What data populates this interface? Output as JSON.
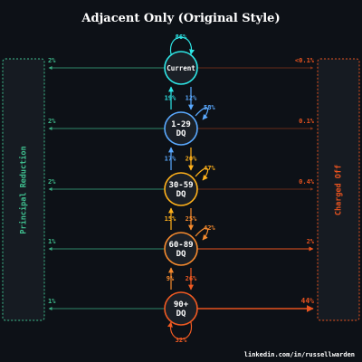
{
  "title": "Adjacent Only (Original Style)",
  "credit": "linkedin.com/in/russellwarden",
  "side_labels": {
    "left": "Principal Reduction",
    "right": "Charged Off"
  },
  "colors": {
    "background": "#0d1117",
    "title": "#ffffff",
    "credit": "#ffffff",
    "principal": "#3fbf8f",
    "charged_off": "#e8531f",
    "panel_fill": "#161b22",
    "node_fill": "#1b2027",
    "node_text": "#ffffff"
  },
  "states": [
    {
      "id": "current",
      "label": [
        "Current"
      ],
      "color": "#2ee6e6",
      "self_loop": "86%",
      "self_loop_side": "top",
      "to_principal": "2%",
      "to_charged_off": "<0.1%",
      "charged_off_weight": "faint"
    },
    {
      "id": "dq1",
      "label": [
        "1-29",
        "DQ"
      ],
      "color": "#5aa9ff",
      "self_loop": "58%",
      "self_loop_side": "right",
      "to_principal": "2%",
      "to_charged_off": "0.1%",
      "charged_off_weight": "faint"
    },
    {
      "id": "dq30",
      "label": [
        "30-59",
        "DQ"
      ],
      "color": "#ffb11b",
      "self_loop": "47%",
      "self_loop_side": "right",
      "to_principal": "2%",
      "to_charged_off": "0.4%",
      "charged_off_weight": "faint"
    },
    {
      "id": "dq60",
      "label": [
        "60-89",
        "DQ"
      ],
      "color": "#f58a2e",
      "self_loop": "42%",
      "self_loop_side": "right",
      "to_principal": "1%",
      "to_charged_off": "2%",
      "charged_off_weight": "medium"
    },
    {
      "id": "dq90",
      "label": [
        "90+",
        "DQ"
      ],
      "color": "#f05a22",
      "self_loop": "32%",
      "self_loop_side": "bottom",
      "to_principal": "1%",
      "to_charged_off": "44%",
      "charged_off_weight": "bold"
    }
  ],
  "transitions": [
    {
      "up": "19%",
      "down": "12%",
      "up_color": "#2ee6e6",
      "down_color": "#5aa9ff"
    },
    {
      "up": "17%",
      "down": "20%",
      "up_color": "#5aa9ff",
      "down_color": "#ffb11b"
    },
    {
      "up": "15%",
      "down": "25%",
      "up_color": "#ffb11b",
      "down_color": "#f58a2e"
    },
    {
      "up": "9%",
      "down": "26%",
      "up_color": "#f58a2e",
      "down_color": "#f05a22"
    }
  ]
}
